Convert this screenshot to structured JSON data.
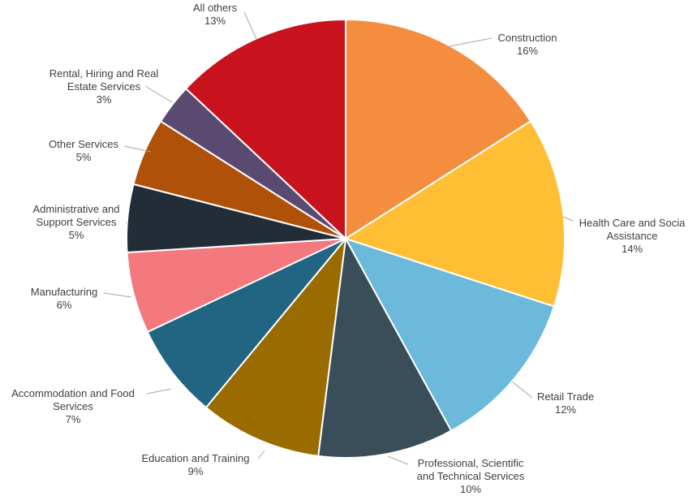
{
  "chart_data": {
    "type": "pie",
    "slices": [
      {
        "label": "Construction",
        "label_lines": [
          "Construction"
        ],
        "pct_text": "16%",
        "value": 16,
        "color": "#F58D3E"
      },
      {
        "label": "Health Care and Socia Assistance",
        "label_lines": [
          "Health Care and Socia",
          "Assistance"
        ],
        "pct_text": "14%",
        "value": 14,
        "color": "#FFBE33"
      },
      {
        "label": "Retail Trade",
        "label_lines": [
          "Retail Trade"
        ],
        "pct_text": "12%",
        "value": 12,
        "color": "#6BB9DB"
      },
      {
        "label": "Professional, Scientific and Technical Services",
        "label_lines": [
          "Professional, Scientific",
          "and Technical Services"
        ],
        "pct_text": "10%",
        "value": 10,
        "color": "#3A4E5A"
      },
      {
        "label": "Education and Training",
        "label_lines": [
          "Education and Training"
        ],
        "pct_text": "9%",
        "value": 9,
        "color": "#9A6C00"
      },
      {
        "label": "Accommodation and Food Services",
        "label_lines": [
          "Accommodation and Food",
          "Services"
        ],
        "pct_text": "7%",
        "value": 7,
        "color": "#216582"
      },
      {
        "label": "Manufacturing",
        "label_lines": [
          "Manufacturing"
        ],
        "pct_text": "6%",
        "value": 6,
        "color": "#F4797E"
      },
      {
        "label": "Administrative and Support Services",
        "label_lines": [
          "Administrative and",
          "Support Services"
        ],
        "pct_text": "5%",
        "value": 5,
        "color": "#222D38"
      },
      {
        "label": "Other Services",
        "label_lines": [
          "Other Services"
        ],
        "pct_text": "5%",
        "value": 5,
        "color": "#B05109"
      },
      {
        "label": "Rental, Hiring and Real Estate Services",
        "label_lines": [
          "Rental, Hiring and Real",
          "Estate Services"
        ],
        "pct_text": "3%",
        "value": 3,
        "color": "#5A4A72"
      },
      {
        "label": "All others",
        "label_lines": [
          "All others"
        ],
        "pct_text": "13%",
        "value": 13,
        "color": "#C8131E"
      }
    ],
    "start_position": "12 o'clock",
    "direction": "clockwise",
    "legend": "none"
  }
}
